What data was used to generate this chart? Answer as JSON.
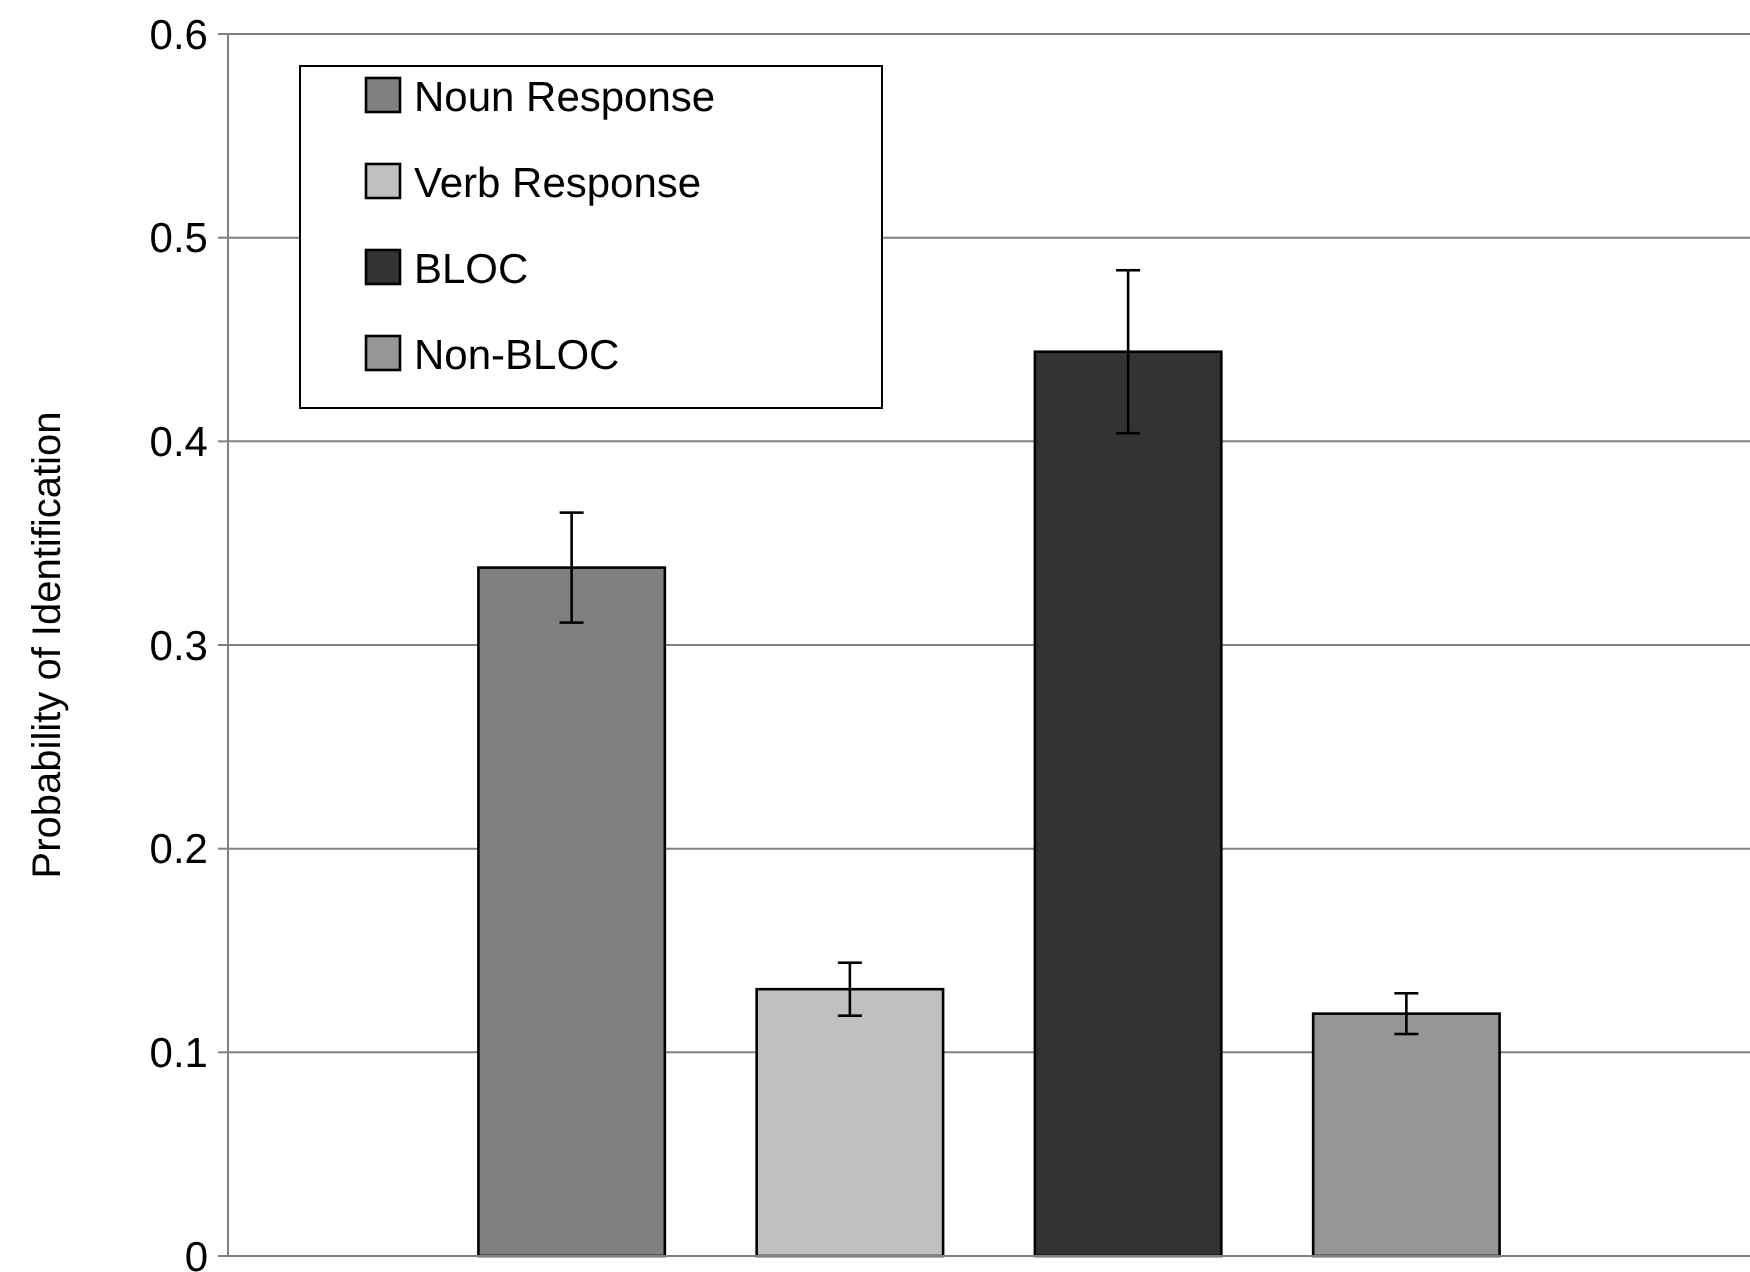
{
  "chart_data": {
    "type": "bar",
    "ylabel": "Probability of Identification",
    "categories": [
      null
    ],
    "series": [
      {
        "name": "Noun Response",
        "color": "#808080",
        "values": [
          0.338
        ],
        "errors": [
          0.027
        ]
      },
      {
        "name": "Verb Response",
        "color": "#c0c0c0",
        "values": [
          0.131
        ],
        "errors": [
          0.013
        ]
      },
      {
        "name": "BLOC",
        "color": "#333333",
        "values": [
          0.444
        ],
        "errors": [
          0.04
        ]
      },
      {
        "name": "Non-BLOC",
        "color": "#969696",
        "values": [
          0.119
        ],
        "errors": [
          0.01
        ]
      }
    ],
    "ylim": [
      0,
      0.6
    ],
    "yticks": [
      0,
      0.1,
      0.2,
      0.3,
      0.4,
      0.5,
      0.6
    ],
    "grid": "y",
    "legend": "top left"
  }
}
